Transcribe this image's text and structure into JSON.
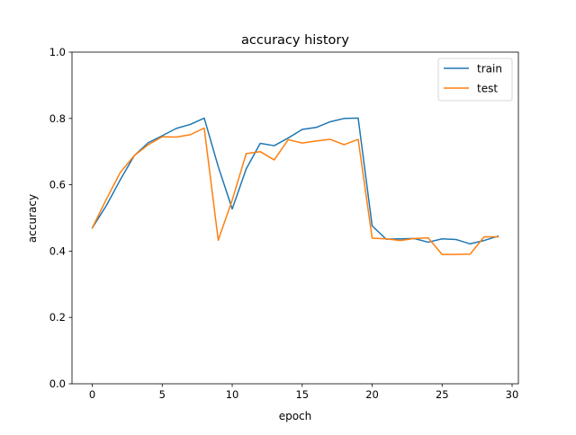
{
  "chart_data": {
    "type": "line",
    "title": "accuracy history",
    "xlabel": "epoch",
    "ylabel": "accuracy",
    "xlim": [
      -1.45,
      30.45
    ],
    "ylim": [
      0.0,
      1.0
    ],
    "x_ticks": [
      0,
      5,
      10,
      15,
      20,
      25,
      30
    ],
    "y_ticks": [
      0.0,
      0.2,
      0.4,
      0.6,
      0.8,
      1.0
    ],
    "x_tick_labels": [
      "0",
      "5",
      "10",
      "15",
      "20",
      "25",
      "30"
    ],
    "y_tick_labels": [
      "0.0",
      "0.2",
      "0.4",
      "0.6",
      "0.8",
      "1.0"
    ],
    "grid": false,
    "legend_position": "top-right",
    "x": [
      0,
      1,
      2,
      3,
      4,
      5,
      6,
      7,
      8,
      9,
      10,
      11,
      12,
      13,
      14,
      15,
      16,
      17,
      18,
      19,
      20,
      21,
      22,
      23,
      24,
      25,
      26,
      27,
      28,
      29
    ],
    "series": [
      {
        "name": "train",
        "color": "#1f77b4",
        "values": [
          0.47,
          0.537,
          0.615,
          0.688,
          0.727,
          0.748,
          0.77,
          0.782,
          0.801,
          0.655,
          0.527,
          0.648,
          0.725,
          0.718,
          0.741,
          0.767,
          0.773,
          0.79,
          0.8,
          0.801,
          0.476,
          0.436,
          0.437,
          0.438,
          0.427,
          0.437,
          0.435,
          0.422,
          0.432,
          0.445
        ]
      },
      {
        "name": "test",
        "color": "#ff7f0e",
        "values": [
          0.47,
          0.556,
          0.637,
          0.688,
          0.721,
          0.745,
          0.744,
          0.751,
          0.771,
          0.433,
          0.554,
          0.694,
          0.7,
          0.675,
          0.736,
          0.726,
          0.732,
          0.737,
          0.721,
          0.737,
          0.439,
          0.437,
          0.432,
          0.438,
          0.44,
          0.39,
          0.39,
          0.391,
          0.443,
          0.443
        ]
      }
    ]
  }
}
